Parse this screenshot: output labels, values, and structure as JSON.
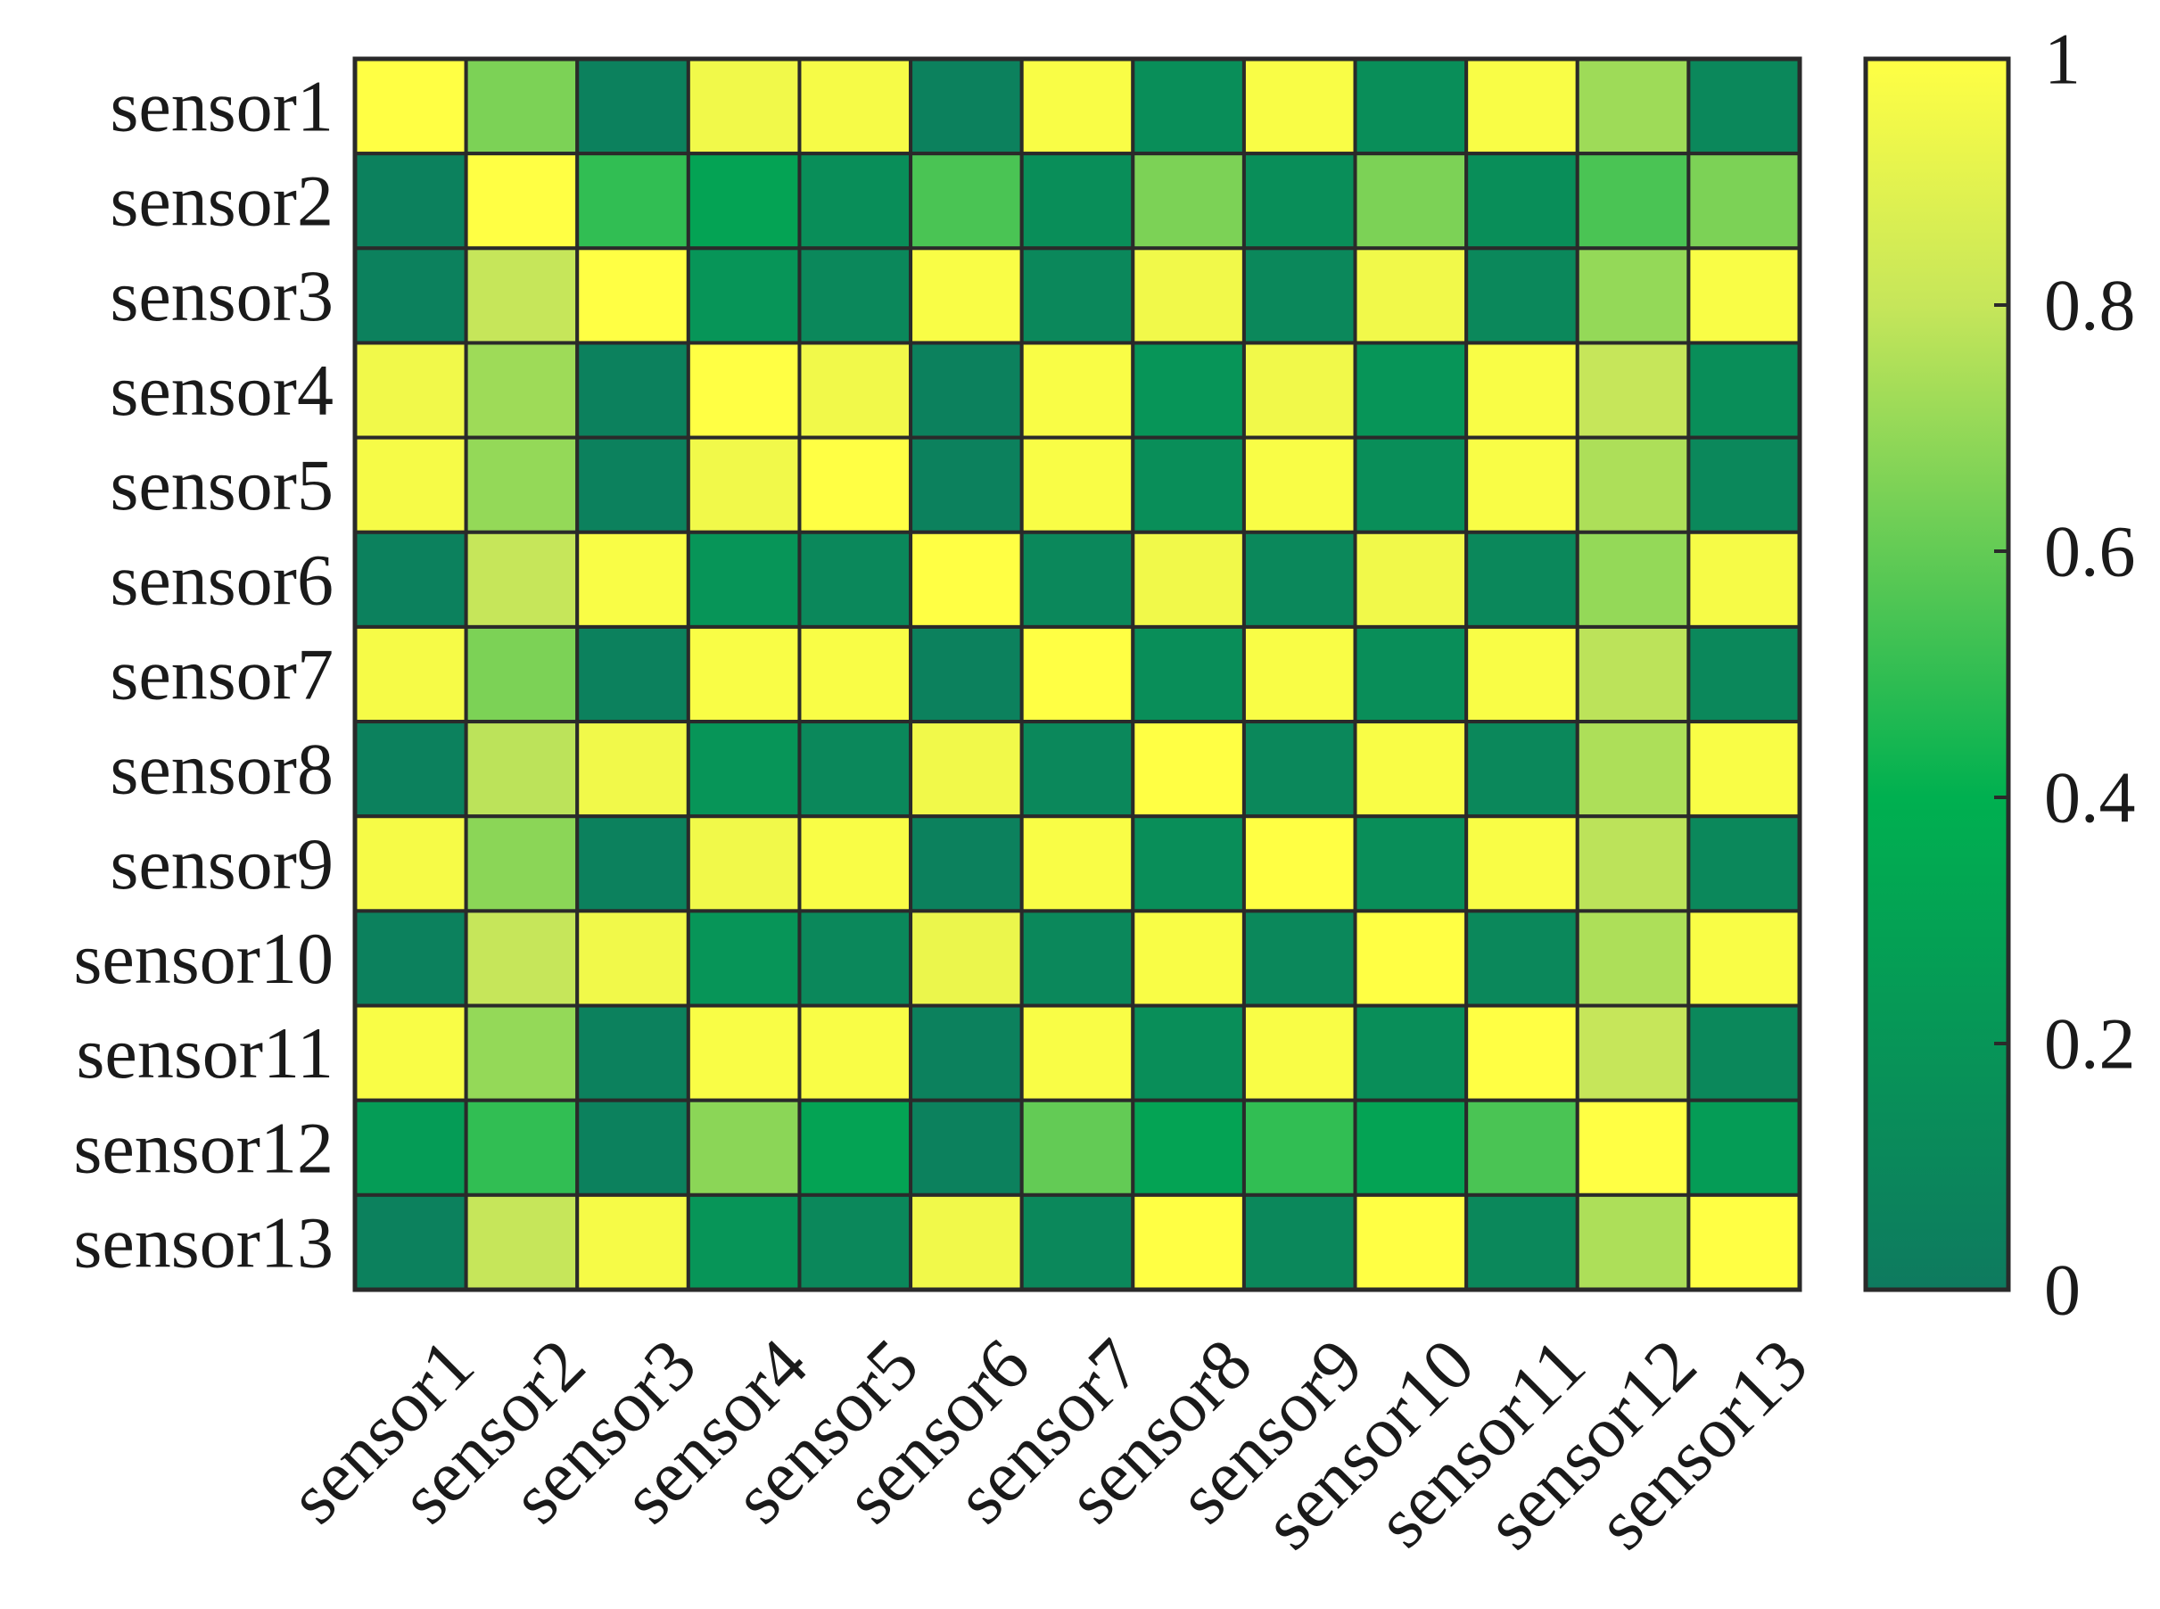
{
  "chart_data": {
    "type": "heatmap",
    "rows": [
      "sensor1",
      "sensor2",
      "sensor3",
      "sensor4",
      "sensor5",
      "sensor6",
      "sensor7",
      "sensor8",
      "sensor9",
      "sensor10",
      "sensor11",
      "sensor12",
      "sensor13"
    ],
    "cols": [
      "sensor1",
      "sensor2",
      "sensor3",
      "sensor4",
      "sensor5",
      "sensor6",
      "sensor7",
      "sensor8",
      "sensor9",
      "sensor10",
      "sensor11",
      "sensor12",
      "sensor13"
    ],
    "values": [
      [
        1.0,
        0.65,
        0.05,
        0.95,
        0.97,
        0.05,
        0.98,
        0.15,
        0.98,
        0.15,
        0.98,
        0.72,
        0.1
      ],
      [
        0.05,
        1.0,
        0.5,
        0.3,
        0.15,
        0.55,
        0.15,
        0.65,
        0.15,
        0.65,
        0.15,
        0.55,
        0.65
      ],
      [
        0.05,
        0.8,
        1.0,
        0.2,
        0.1,
        0.98,
        0.1,
        0.95,
        0.1,
        0.95,
        0.1,
        0.7,
        0.98
      ],
      [
        0.95,
        0.72,
        0.05,
        1.0,
        0.95,
        0.05,
        0.98,
        0.2,
        0.95,
        0.2,
        0.98,
        0.8,
        0.15
      ],
      [
        0.97,
        0.7,
        0.05,
        0.95,
        1.0,
        0.05,
        0.98,
        0.15,
        0.98,
        0.15,
        0.98,
        0.75,
        0.1
      ],
      [
        0.05,
        0.8,
        0.98,
        0.2,
        0.1,
        1.0,
        0.1,
        0.95,
        0.1,
        0.95,
        0.1,
        0.7,
        0.97
      ],
      [
        0.97,
        0.65,
        0.05,
        0.98,
        0.98,
        0.05,
        1.0,
        0.15,
        0.98,
        0.15,
        0.98,
        0.78,
        0.1
      ],
      [
        0.05,
        0.78,
        0.95,
        0.2,
        0.1,
        0.95,
        0.1,
        1.0,
        0.1,
        0.98,
        0.1,
        0.75,
        0.98
      ],
      [
        0.97,
        0.68,
        0.05,
        0.95,
        0.98,
        0.05,
        0.98,
        0.15,
        1.0,
        0.15,
        0.98,
        0.78,
        0.1
      ],
      [
        0.05,
        0.8,
        0.95,
        0.2,
        0.1,
        0.93,
        0.1,
        0.98,
        0.1,
        1.0,
        0.1,
        0.75,
        0.98
      ],
      [
        0.98,
        0.7,
        0.05,
        0.98,
        0.98,
        0.05,
        0.98,
        0.15,
        0.98,
        0.15,
        1.0,
        0.8,
        0.1
      ],
      [
        0.25,
        0.5,
        0.05,
        0.68,
        0.3,
        0.05,
        0.6,
        0.3,
        0.5,
        0.3,
        0.55,
        1.0,
        0.25
      ],
      [
        0.05,
        0.8,
        0.97,
        0.2,
        0.1,
        0.95,
        0.1,
        1.0,
        0.1,
        1.0,
        0.1,
        0.75,
        1.0
      ]
    ],
    "colorbar": {
      "min": 0,
      "max": 1,
      "ticks": [
        0,
        0.2,
        0.4,
        0.6,
        0.8,
        1
      ],
      "tick_labels": [
        "0",
        "0.2",
        "0.4",
        "0.6",
        "0.8",
        "1"
      ]
    },
    "colormap": [
      {
        "v": 0.0,
        "color": "#0e7a5f"
      },
      {
        "v": 0.4,
        "color": "#00b050"
      },
      {
        "v": 0.8,
        "color": "#c6e65a"
      },
      {
        "v": 1.0,
        "color": "#ffff44"
      }
    ],
    "cell_border_color": "#2a2a2a",
    "grid": true
  }
}
